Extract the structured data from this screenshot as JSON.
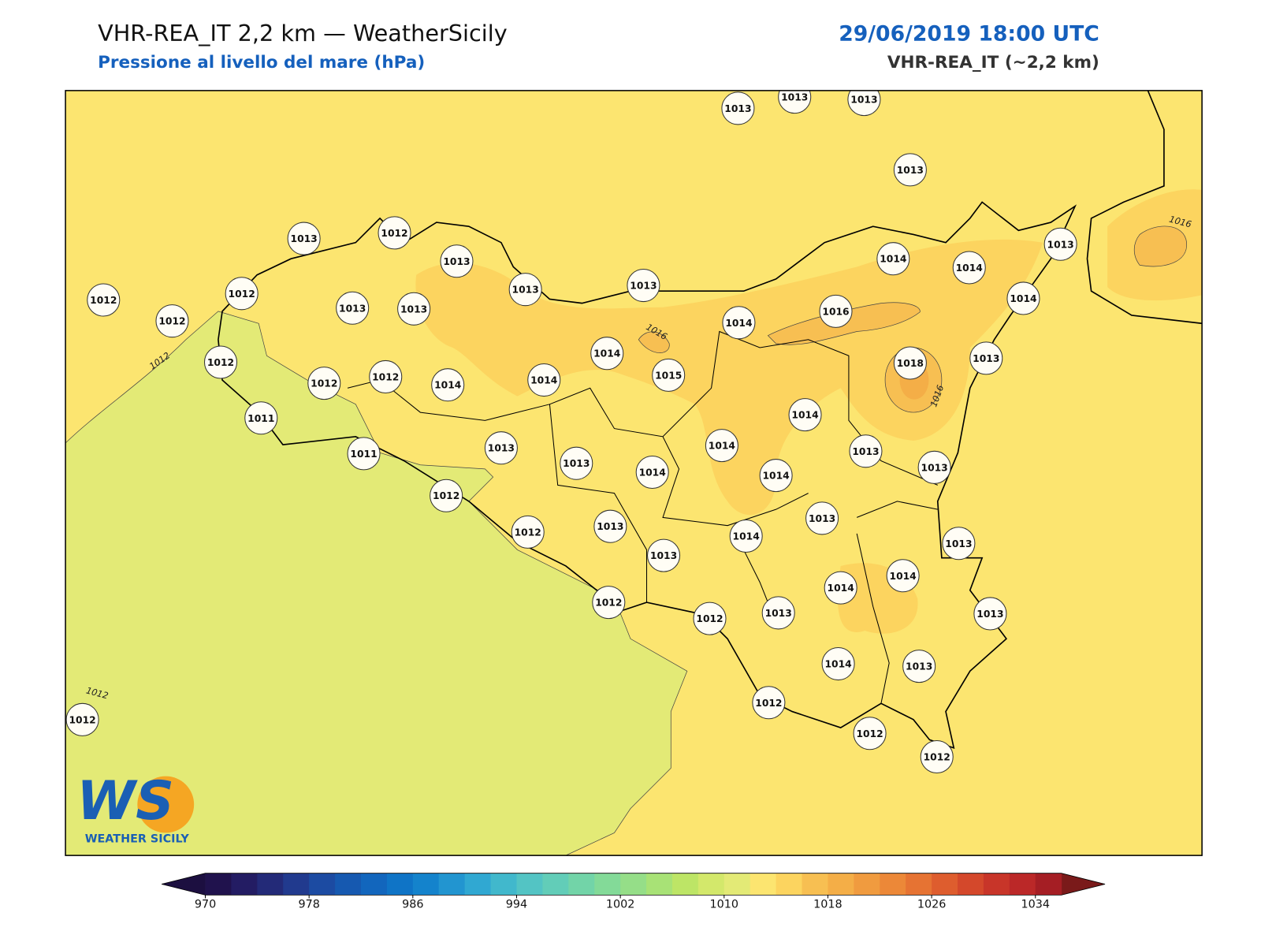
{
  "header": {
    "title": "VHR-REA_IT 2,2 km — WeatherSicily",
    "subtitle": "Pressione al livello del mare (hPa)",
    "datetime": "29/06/2019 18:00 UTC",
    "model": "VHR-REA_IT (~2,2 km)"
  },
  "stations": [
    {
      "label": "1013"
    },
    {
      "label": "1013"
    },
    {
      "label": "1013"
    },
    {
      "label": "1013"
    },
    {
      "label": "1013"
    },
    {
      "label": "1012"
    },
    {
      "label": "1013"
    },
    {
      "label": "1013"
    },
    {
      "label": "1013"
    },
    {
      "label": "1014"
    },
    {
      "label": "1014"
    },
    {
      "label": "1013"
    },
    {
      "label": "1014"
    },
    {
      "label": "1012"
    },
    {
      "label": "1012"
    },
    {
      "label": "1012"
    },
    {
      "label": "1013"
    },
    {
      "label": "1013"
    },
    {
      "label": "1014"
    },
    {
      "label": "1016"
    },
    {
      "label": "1018"
    },
    {
      "label": "1013"
    },
    {
      "label": "1012"
    },
    {
      "label": "1012"
    },
    {
      "label": "1012"
    },
    {
      "label": "1014"
    },
    {
      "label": "1014"
    },
    {
      "label": "1014"
    },
    {
      "label": "1015"
    },
    {
      "label": "1014"
    },
    {
      "label": "1011"
    },
    {
      "label": "1011"
    },
    {
      "label": "1013"
    },
    {
      "label": "1013"
    },
    {
      "label": "1014"
    },
    {
      "label": "1014"
    },
    {
      "label": "1014"
    },
    {
      "label": "1013"
    },
    {
      "label": "1013"
    },
    {
      "label": "1012"
    },
    {
      "label": "1012"
    },
    {
      "label": "1013"
    },
    {
      "label": "1013"
    },
    {
      "label": "1014"
    },
    {
      "label": "1013"
    },
    {
      "label": "1013"
    },
    {
      "label": "1014"
    },
    {
      "label": "1014"
    },
    {
      "label": "1012"
    },
    {
      "label": "1012"
    },
    {
      "label": "1013"
    },
    {
      "label": "1013"
    },
    {
      "label": "1014"
    },
    {
      "label": "1013"
    },
    {
      "label": "1012"
    },
    {
      "label": "1012"
    },
    {
      "label": "1012"
    },
    {
      "label": "1012"
    }
  ],
  "contour_labels": [
    "1012",
    "1016",
    "1016",
    "1016",
    "1012"
  ],
  "colorbar": {
    "range": [
      970,
      1036
    ],
    "ticks": [
      970,
      978,
      986,
      994,
      1002,
      1010,
      1018,
      1026,
      1034
    ],
    "colors": [
      "#20124d",
      "#231c63",
      "#232a78",
      "#213a8e",
      "#1c4ba2",
      "#1659b0",
      "#1266bd",
      "#0f74c6",
      "#1483cc",
      "#2295d0",
      "#30a8d2",
      "#41b8cc",
      "#53c4c4",
      "#62cdb8",
      "#72d4a8",
      "#83da98",
      "#95de88",
      "#a8e276",
      "#bde566",
      "#d3e86b",
      "#e3ea76",
      "#fce570",
      "#fcd45f",
      "#f7bf52",
      "#f4ae47",
      "#f09b3f",
      "#ec8838",
      "#e67333",
      "#de5d2e",
      "#d4482b",
      "#c83529",
      "#bb2828",
      "#a51e24"
    ],
    "under_color": "#1c0f40",
    "over_color": "#7a1a1a"
  },
  "logo": {
    "mark": "WS",
    "text": "WEATHER SICILY"
  }
}
